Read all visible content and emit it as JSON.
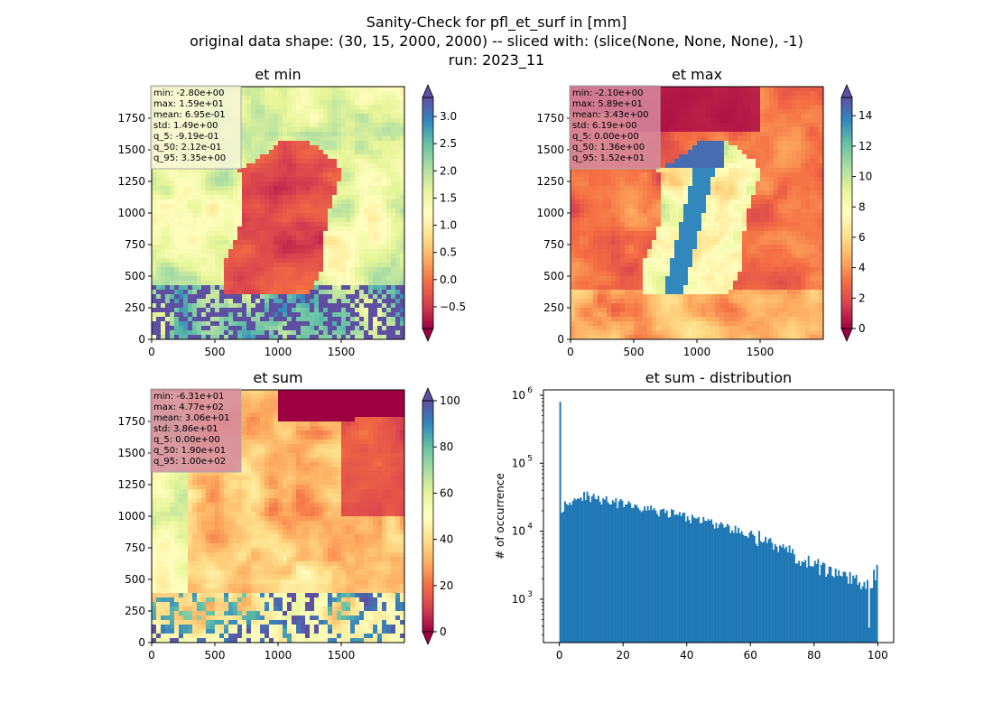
{
  "figure": {
    "title_lines": [
      "Sanity-Check for pfl_et_surf in [mm]",
      "original data shape: (30, 15, 2000, 2000) -- sliced with: (slice(None, None, None), -1)",
      "run: 2023_11"
    ]
  },
  "colors": {
    "spectral": [
      "#9e0142",
      "#d53e4f",
      "#f46d43",
      "#fdae61",
      "#fee08b",
      "#ffffbf",
      "#e6f598",
      "#abdda4",
      "#66c2a5",
      "#3288bd",
      "#5e4fa2"
    ],
    "hist_bar": "#1f77b4",
    "stats_box_light": "#f7f7d6",
    "stats_box_pink": "#d58aa0"
  },
  "chart_data": [
    {
      "type": "heatmap",
      "title": "et min",
      "x_ticks": [
        0,
        500,
        1000,
        1500
      ],
      "y_ticks": [
        0,
        250,
        500,
        750,
        1000,
        1250,
        1500,
        1750
      ],
      "xlim": [
        0,
        2000
      ],
      "ylim": [
        0,
        2000
      ],
      "colorbar": {
        "vmin": -0.9,
        "vmax": 3.35,
        "ticks": [
          3.0,
          2.5,
          2.0,
          1.5,
          1.0,
          0.5,
          0.0,
          -0.5
        ],
        "tick_labels": [
          "3.0",
          "2.5",
          "2.0",
          "1.5",
          "1.0",
          "0.5",
          "0.0",
          "−0.5"
        ],
        "extend": "both"
      },
      "stats": [
        "min: -2.80e+00",
        "max: 1.59e+01",
        "mean: 6.95e-01",
        "std: 1.49e+00",
        "q_5: -9.19e-01",
        "q_50: 2.12e-01",
        "q_95: 3.35e+00"
      ],
      "stats_box": "light"
    },
    {
      "type": "heatmap",
      "title": "et max",
      "x_ticks": [
        0,
        500,
        1000,
        1500
      ],
      "y_ticks": [
        0,
        250,
        500,
        750,
        1000,
        1250,
        1500,
        1750
      ],
      "xlim": [
        0,
        2000
      ],
      "ylim": [
        0,
        2000
      ],
      "colorbar": {
        "vmin": 0,
        "vmax": 15.2,
        "ticks": [
          14,
          12,
          10,
          8,
          6,
          4,
          2,
          0
        ],
        "tick_labels": [
          "14",
          "12",
          "10",
          "8",
          "6",
          "4",
          "2",
          "0"
        ],
        "extend": "both"
      },
      "stats": [
        "min: -2.10e+00",
        "max: 5.89e+01",
        "mean: 3.43e+00",
        "std: 6.19e+00",
        "q_5: 0.00e+00",
        "q_50: 1.36e+00",
        "q_95: 1.52e+01"
      ],
      "stats_box": "pink"
    },
    {
      "type": "heatmap",
      "title": "et sum",
      "x_ticks": [
        0,
        500,
        1000,
        1500
      ],
      "y_ticks": [
        0,
        250,
        500,
        750,
        1000,
        1250,
        1500,
        1750
      ],
      "xlim": [
        0,
        2000
      ],
      "ylim": [
        0,
        2000
      ],
      "colorbar": {
        "vmin": 0,
        "vmax": 100,
        "ticks": [
          100,
          80,
          60,
          40,
          20,
          0
        ],
        "tick_labels": [
          "100",
          "80",
          "60",
          "40",
          "20",
          "0"
        ],
        "extend": "both"
      },
      "stats": [
        "min: -6.31e+01",
        "max: 4.77e+02",
        "mean: 3.06e+01",
        "std: 3.86e+01",
        "q_5: 0.00e+00",
        "q_50: 1.90e+01",
        "q_95: 1.00e+02"
      ],
      "stats_box": "pink"
    },
    {
      "type": "bar",
      "title": "et sum - distribution",
      "ylabel": "# of occurrence",
      "xlabel": "",
      "yscale": "log",
      "xlim": [
        -5,
        105
      ],
      "ylim": [
        230,
        1200000
      ],
      "x_ticks": [
        0,
        20,
        40,
        60,
        80,
        100
      ],
      "x_tick_labels": [
        "0",
        "20",
        "40",
        "60",
        "80",
        "100"
      ],
      "y_ticks": [
        1000,
        10000,
        100000,
        1000000
      ],
      "y_tick_bases": [
        "10",
        "10",
        "10",
        "10"
      ],
      "y_tick_exps": [
        "3",
        "4",
        "5",
        "6"
      ],
      "bin_range": [
        0,
        100
      ],
      "bin_count": 200,
      "anchors": [
        [
          0,
          800000
        ],
        [
          0.5,
          20000
        ],
        [
          2,
          27000
        ],
        [
          5,
          30000
        ],
        [
          8,
          33000
        ],
        [
          10,
          32000
        ],
        [
          15,
          28000
        ],
        [
          20,
          25000
        ],
        [
          25,
          22000
        ],
        [
          30,
          20000
        ],
        [
          35,
          18500
        ],
        [
          40,
          16000
        ],
        [
          45,
          14000
        ],
        [
          50,
          12500
        ],
        [
          55,
          10500
        ],
        [
          60,
          9000
        ],
        [
          65,
          7500
        ],
        [
          70,
          5500
        ],
        [
          75,
          4200
        ],
        [
          80,
          3300
        ],
        [
          85,
          2600
        ],
        [
          90,
          2100
        ],
        [
          95,
          1700
        ],
        [
          100,
          1500
        ]
      ],
      "special_bins": [
        [
          0,
          800000
        ],
        [
          197,
          2700
        ],
        [
          199,
          3200
        ],
        [
          194,
          380
        ]
      ]
    }
  ]
}
